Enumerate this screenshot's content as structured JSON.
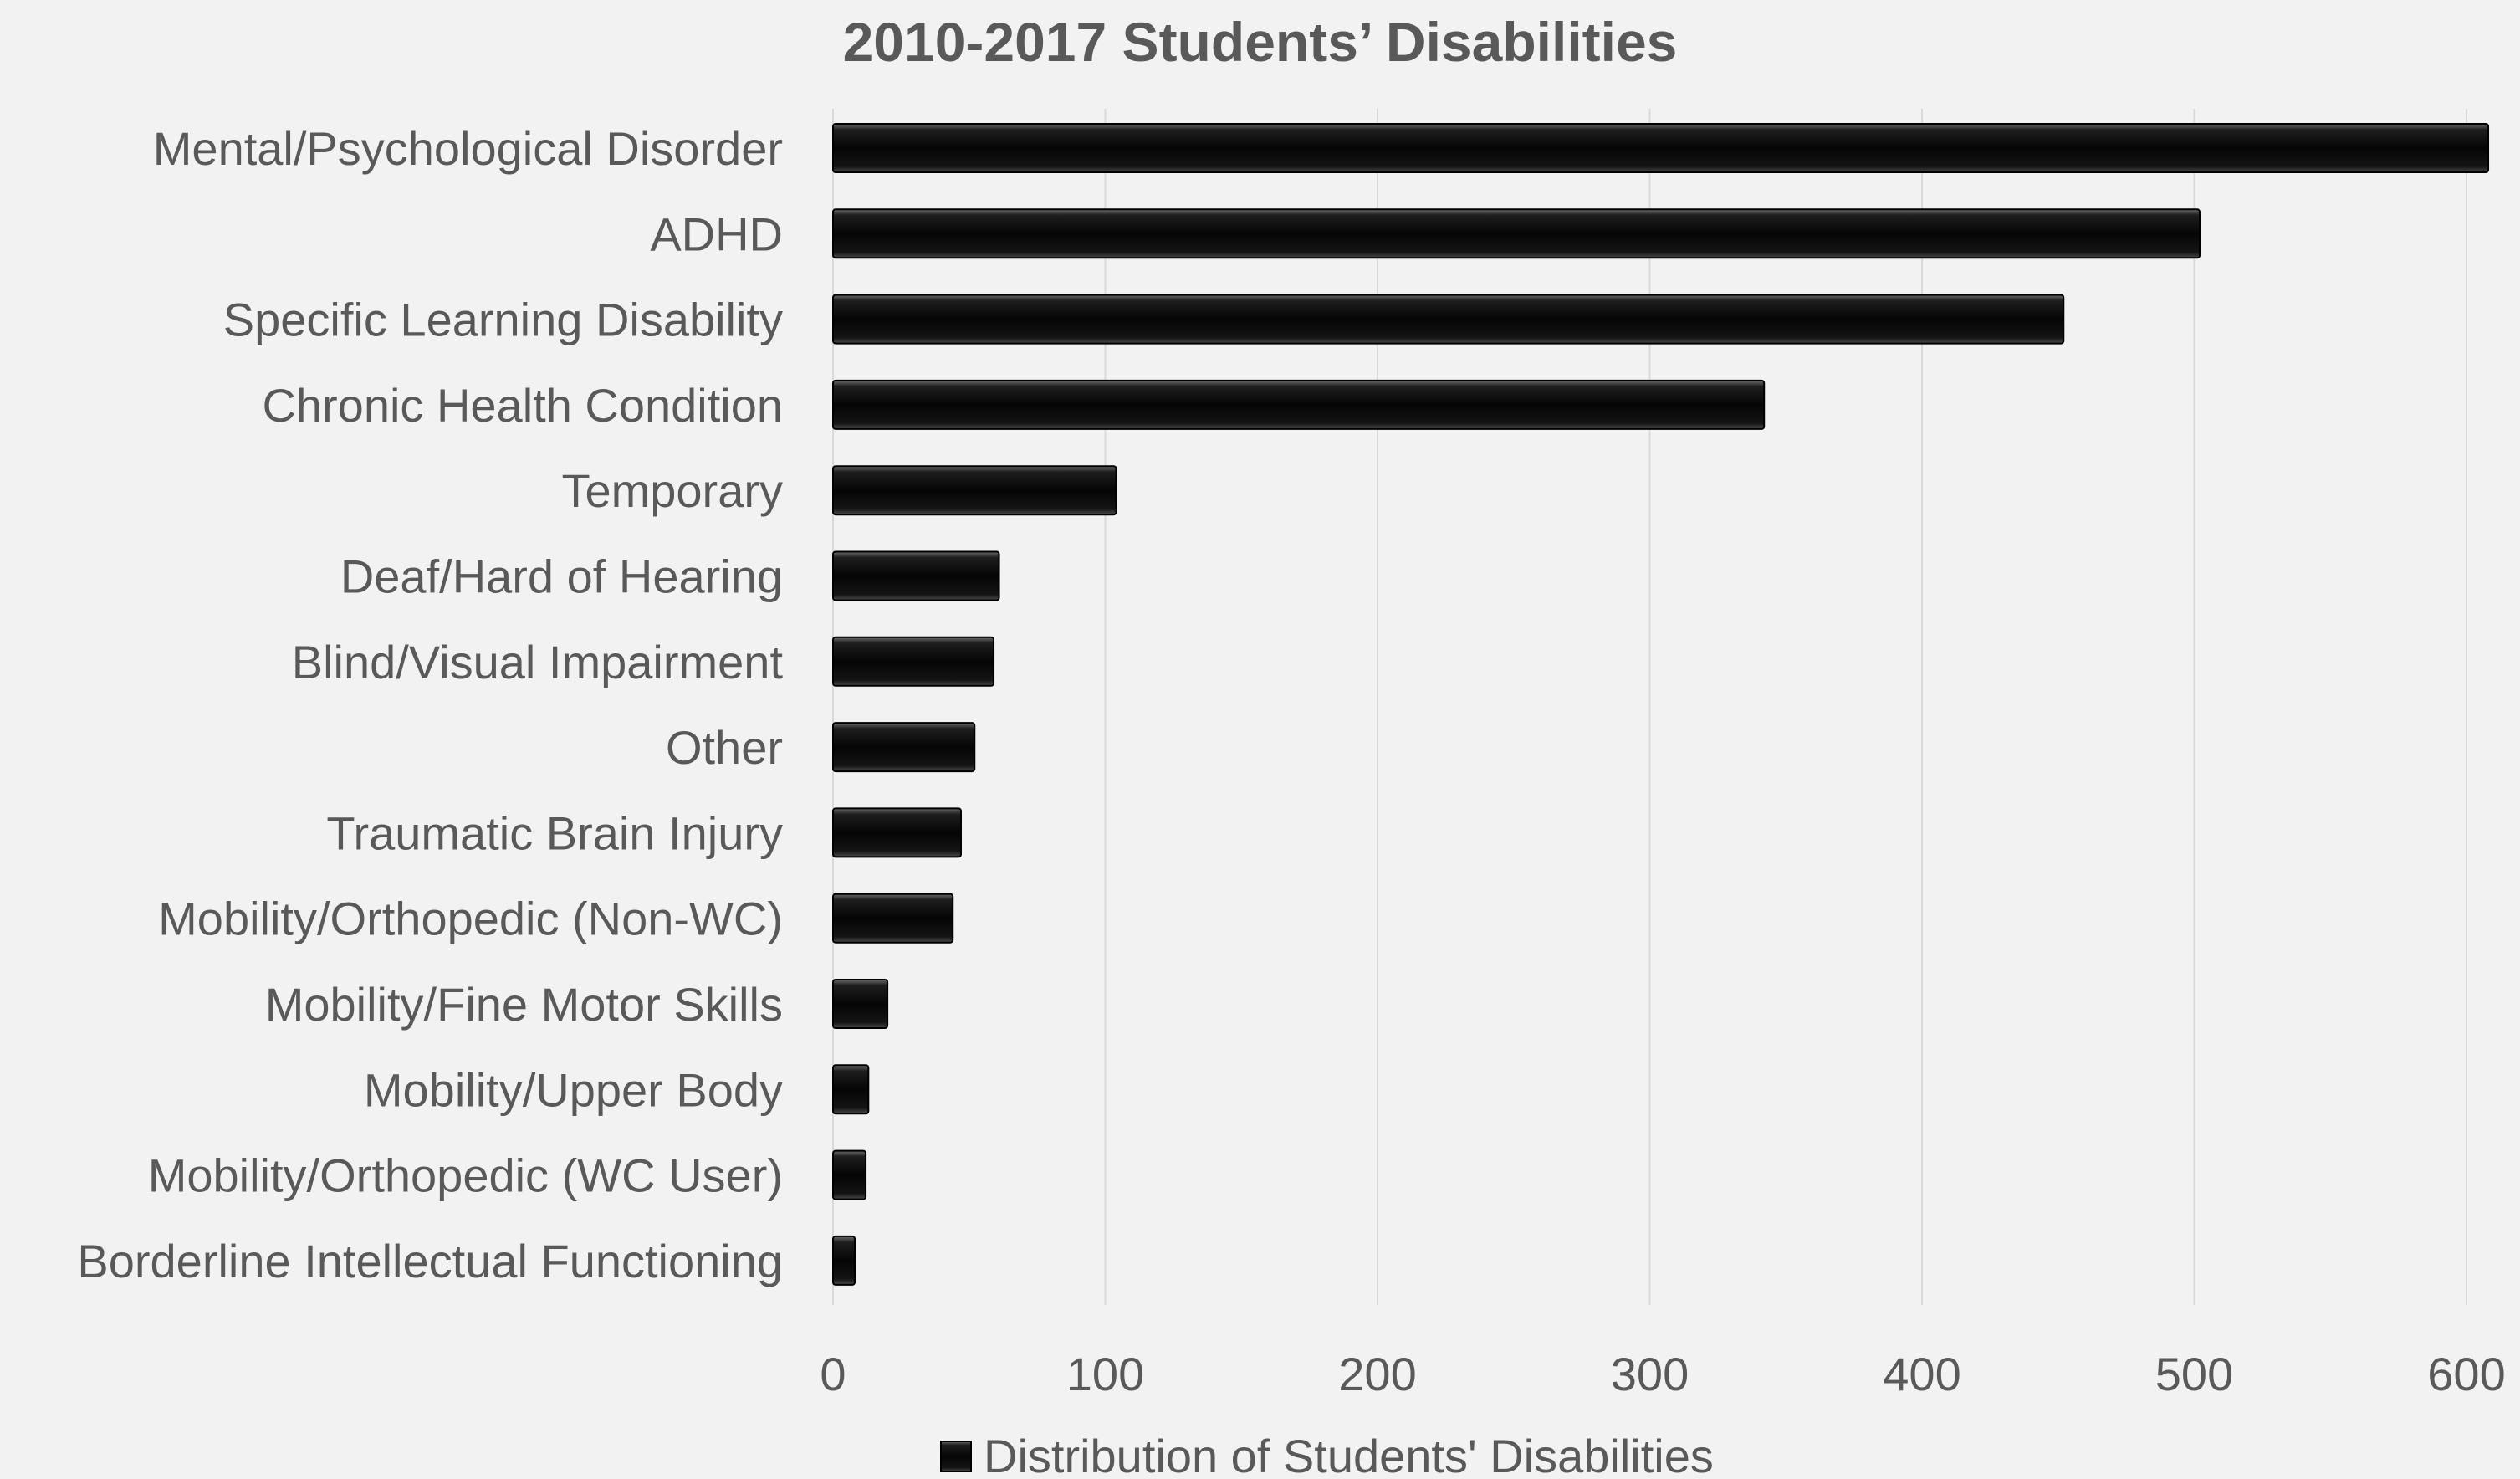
{
  "chart_data": {
    "type": "bar",
    "orientation": "horizontal",
    "title": "2010-2017 Students’ Disabilities",
    "categories": [
      "Mental/Psychological Disorder",
      "ADHD",
      "Specific Learning Disability",
      "Chronic Health Condition",
      "Temporary",
      "Deaf/Hard of Hearing",
      "Blind/Visual Impairment",
      "Other",
      "Traumatic Brain Injury",
      "Mobility/Orthopedic (Non-WC)",
      "Mobility/Fine Motor Skills",
      "Mobility/Upper Body",
      "Mobility/Orthopedic (WC User)",
      "Borderline Intellectual Functioning"
    ],
    "series": [
      {
        "name": "Distribution of Students' Disabilities",
        "values": [
          608,
          502,
          452,
          342,
          104,
          61,
          59,
          52,
          47,
          44,
          20,
          13,
          12,
          8
        ],
        "color": "#0d0d0d"
      }
    ],
    "xlim": [
      0,
      600
    ],
    "xticks": [
      "0",
      "100",
      "200",
      "300",
      "400",
      "500",
      "600"
    ],
    "xlabel": "",
    "ylabel": "",
    "grid": "vertical",
    "legend": "bottom"
  }
}
